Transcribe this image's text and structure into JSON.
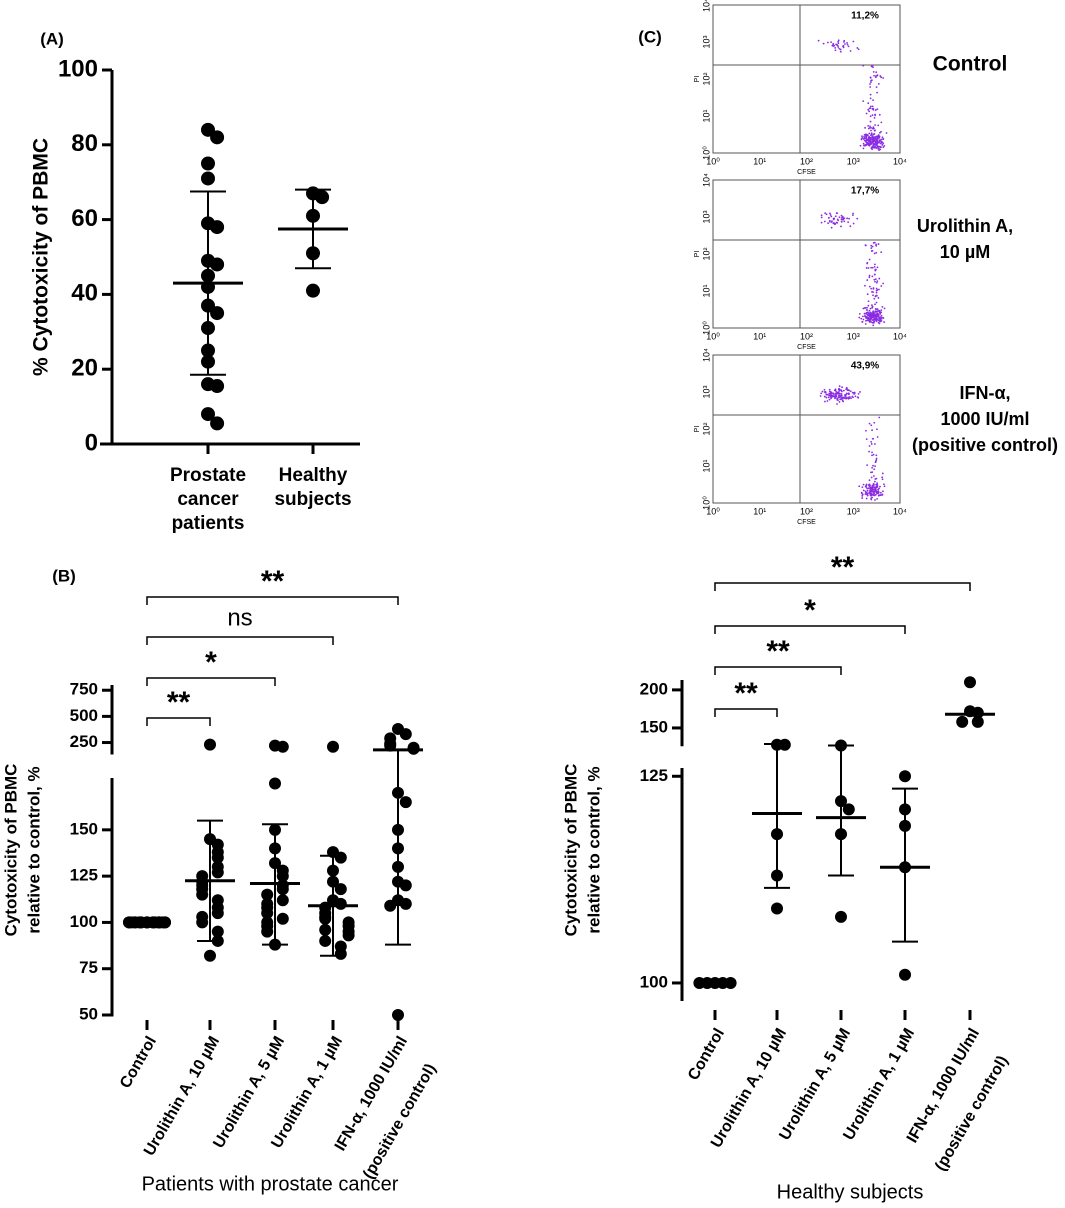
{
  "chart_data": [
    {
      "type": "dotplot",
      "panel_label": "(A)",
      "y_label": [
        "% Cytotoxicity of PBMC"
      ],
      "categories": [
        [
          "Prostate",
          "cancer",
          "patients"
        ],
        [
          "Healthy",
          "subjects"
        ]
      ],
      "axis_segments": [
        {
          "ylim": [
            0,
            100
          ],
          "yticks": [
            0,
            20,
            40,
            60,
            80,
            100
          ]
        }
      ],
      "groups": [
        {
          "values": [
            84,
            82,
            75,
            71,
            59,
            58,
            49,
            48,
            45,
            42,
            37,
            35,
            31,
            25,
            22,
            16,
            15.5,
            8,
            5.5
          ],
          "mean": 43,
          "sd_low": 18.5,
          "sd_high": 67.5
        },
        {
          "values": [
            67,
            66,
            61,
            51,
            41
          ],
          "mean": 57.5,
          "sd_low": 47,
          "sd_high": 68
        }
      ]
    },
    {
      "type": "dotplot",
      "panel_label": "(B)",
      "y_label": [
        "Cytotoxicity of PBMC",
        "relative to control, %"
      ],
      "x_label": "Patients with prostate cancer",
      "categories": [
        [
          "Control"
        ],
        [
          "Urolithin A, 10 µM"
        ],
        [
          "Urolithin A, 5 µM"
        ],
        [
          "Urolithin A, 1 µM"
        ],
        [
          "IFN-α, 1000 IU/ml",
          "(positive control)"
        ]
      ],
      "axis_segments": [
        {
          "ylim": [
            50,
            178
          ],
          "yticks": [
            50,
            75,
            100,
            125,
            150
          ]
        },
        {
          "ylim": [
            150,
            800
          ],
          "yticks": [
            250,
            500,
            750
          ]
        }
      ],
      "groups": [
        {
          "values": [
            100,
            100,
            100,
            100,
            100,
            100,
            100,
            100,
            100,
            100,
            100,
            100,
            100,
            100,
            100,
            100,
            100,
            100,
            100,
            100
          ]
        },
        {
          "values": [
            230,
            145,
            142,
            138,
            135,
            130,
            127,
            125,
            122,
            120,
            118,
            115,
            112,
            108,
            105,
            103,
            100,
            95,
            90,
            82
          ],
          "mean": 122.5,
          "sd_low": 90,
          "sd_high": 155
        },
        {
          "values": [
            220,
            210,
            175,
            150,
            140,
            132,
            128,
            125,
            120,
            118,
            115,
            112,
            110,
            108,
            105,
            102,
            100,
            98,
            95,
            88
          ],
          "mean": 121,
          "sd_low": 88,
          "sd_high": 153
        },
        {
          "values": [
            210,
            138,
            135,
            128,
            122,
            118,
            112,
            110,
            108,
            105,
            103,
            102,
            100,
            98,
            96,
            95,
            93,
            90,
            87,
            83
          ],
          "mean": 109,
          "sd_low": 82,
          "sd_high": 136
        },
        {
          "values": [
            380,
            330,
            290,
            240,
            220,
            200,
            190,
            170,
            165,
            150,
            140,
            130,
            122,
            120,
            112,
            110,
            109,
            50
          ],
          "mean": 180,
          "sd_low": 88
        }
      ],
      "brackets": [
        {
          "from": 0,
          "to": 1,
          "label": "**"
        },
        {
          "from": 0,
          "to": 2,
          "label": "*"
        },
        {
          "from": 0,
          "to": 3,
          "label": "ns"
        },
        {
          "from": 0,
          "to": 4,
          "label": "**"
        }
      ]
    },
    {
      "type": "flow",
      "panel_label": "(C)",
      "x_label": "CFSE",
      "y_label": "PI",
      "tick_labels": [
        "10⁰",
        "10¹",
        "10²",
        "10³",
        "10⁴"
      ],
      "panels": [
        {
          "condition": [
            "Control"
          ],
          "percent": 11.2,
          "percent_label": "11,2%"
        },
        {
          "condition": [
            "Urolithin A,",
            "10 µM"
          ],
          "percent": 17.7,
          "percent_label": "17,7%"
        },
        {
          "condition": [
            "IFN-α,",
            "1000 IU/ml",
            "(positive control)"
          ],
          "percent": 43.9,
          "percent_label": "43,9%"
        }
      ]
    },
    {
      "type": "dotplot",
      "y_label": [
        "Cytotoxicity of PBMC",
        "relative to control, %"
      ],
      "x_label": "Healthy subjects",
      "categories": [
        [
          "Control"
        ],
        [
          "Urolithin A, 10 µM"
        ],
        [
          "Urolithin A, 5 µM"
        ],
        [
          "Urolithin A, 1 µM"
        ],
        [
          "IFN-α, 1000 IU/ml",
          "(positive control)"
        ]
      ],
      "axis_segments": [
        {
          "ylim": [
            98,
            126
          ],
          "yticks": [
            100,
            125
          ]
        },
        {
          "ylim": [
            128,
            213
          ],
          "yticks": [
            150,
            200
          ]
        }
      ],
      "groups": [
        {
          "values": [
            100,
            100,
            100,
            100,
            100
          ]
        },
        {
          "values": [
            128,
            128,
            118,
            113,
            109
          ],
          "mean": 120.5,
          "sd_low": 111.5,
          "sd_high": 129
        },
        {
          "values": [
            127,
            122,
            121,
            118,
            108
          ],
          "mean": 120,
          "sd_low": 113,
          "sd_high": 127
        },
        {
          "values": [
            125,
            121,
            119,
            114,
            101
          ],
          "mean": 114,
          "sd_low": 105,
          "sd_high": 123.5
        },
        {
          "values": [
            210,
            172,
            170,
            158,
            158
          ],
          "mean": 168
        }
      ],
      "brackets": [
        {
          "from": 0,
          "to": 1,
          "label": "**"
        },
        {
          "from": 0,
          "to": 2,
          "label": "**"
        },
        {
          "from": 0,
          "to": 3,
          "label": "*"
        },
        {
          "from": 0,
          "to": 4,
          "label": "**"
        }
      ]
    }
  ]
}
